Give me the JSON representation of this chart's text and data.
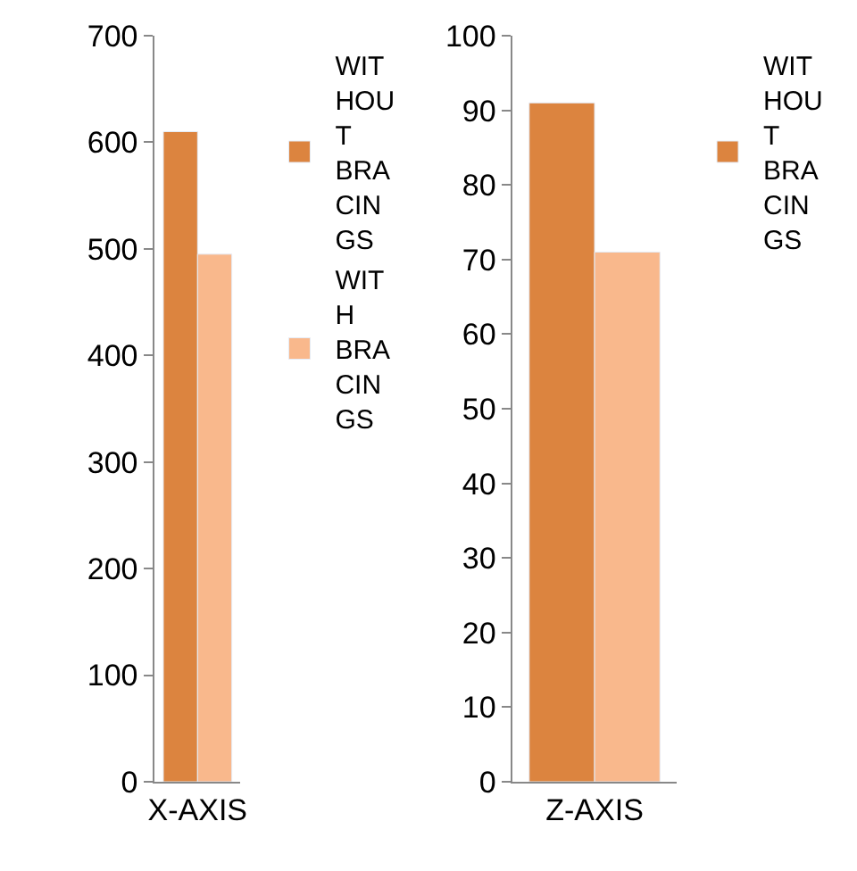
{
  "chart_data": [
    {
      "type": "bar",
      "categories": [
        "X-AXIS"
      ],
      "series": [
        {
          "name": "WITHOUT BRACINGS",
          "color": "#dc843f",
          "values": [
            610
          ]
        },
        {
          "name": "WITH BRACINGS",
          "color": "#f9b88c",
          "values": [
            495
          ]
        }
      ],
      "ylim": [
        0,
        700
      ],
      "yticks": [
        0,
        100,
        200,
        300,
        400,
        500,
        600,
        700
      ],
      "legend": "right"
    },
    {
      "type": "bar",
      "categories": [
        "Z-AXIS"
      ],
      "series": [
        {
          "name": "WITHOUT BRACINGS",
          "color": "#dc843f",
          "values": [
            91
          ]
        },
        {
          "color": "#f9b88c",
          "values": [
            71
          ]
        }
      ],
      "ylim": [
        0,
        100
      ],
      "yticks": [
        0,
        10,
        20,
        30,
        40,
        50,
        60,
        70,
        80,
        90,
        100
      ],
      "legend": "right"
    }
  ]
}
